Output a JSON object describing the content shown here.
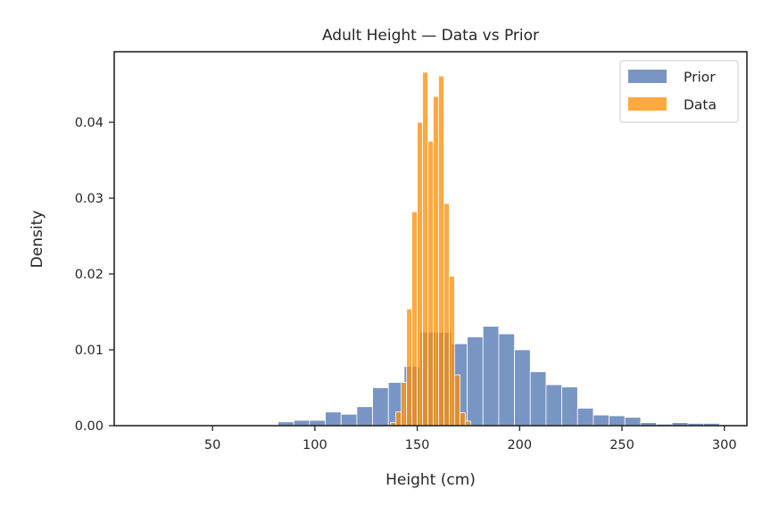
{
  "chart_data": {
    "type": "histogram",
    "title": "Adult Height — Data vs Prior",
    "xlabel": "Height (cm)",
    "ylabel": "Density",
    "xlim": [
      2,
      311
    ],
    "ylim": [
      0,
      0.0493
    ],
    "x_ticks": [
      50,
      100,
      150,
      200,
      250,
      300
    ],
    "x_tick_labels": [
      "50",
      "100",
      "150",
      "200",
      "250",
      "300"
    ],
    "y_ticks": [
      0,
      0.01,
      0.02,
      0.03,
      0.04
    ],
    "y_tick_labels": [
      "0.00",
      "0.01",
      "0.02",
      "0.03",
      "0.04"
    ],
    "grid": false,
    "legend_position": "top-right",
    "series": [
      {
        "name": "Prior",
        "color": "#4c72b0",
        "opacity": 0.75,
        "bins": [
          [
            82.0,
            89.7,
            0.0005
          ],
          [
            89.7,
            97.4,
            0.0007
          ],
          [
            97.4,
            105.1,
            0.0007
          ],
          [
            105.1,
            112.8,
            0.0018
          ],
          [
            112.8,
            120.5,
            0.0015
          ],
          [
            120.5,
            128.2,
            0.0025
          ],
          [
            128.2,
            135.9,
            0.005
          ],
          [
            135.9,
            143.6,
            0.0057
          ],
          [
            143.6,
            151.3,
            0.0078
          ],
          [
            151.3,
            159.0,
            0.0123
          ],
          [
            159.0,
            166.7,
            0.0123
          ],
          [
            166.7,
            174.4,
            0.0108
          ],
          [
            174.4,
            182.1,
            0.0117
          ],
          [
            182.1,
            189.8,
            0.0131
          ],
          [
            189.8,
            197.5,
            0.0121
          ],
          [
            197.5,
            205.2,
            0.01
          ],
          [
            205.2,
            212.9,
            0.0071
          ],
          [
            212.9,
            220.6,
            0.0054
          ],
          [
            220.6,
            228.3,
            0.0051
          ],
          [
            228.3,
            236.0,
            0.0023
          ],
          [
            236.0,
            243.7,
            0.0014
          ],
          [
            243.7,
            251.4,
            0.0013
          ],
          [
            251.4,
            259.1,
            0.0011
          ],
          [
            259.1,
            266.8,
            0.0004
          ],
          [
            266.8,
            274.5,
            0.0002
          ],
          [
            274.5,
            282.2,
            0.0004
          ],
          [
            282.2,
            289.9,
            0.0003
          ],
          [
            289.9,
            297.6,
            0.0003
          ]
        ]
      },
      {
        "name": "Data",
        "color": "#ff8c00",
        "opacity": 0.75,
        "bins": [
          [
            137.0,
            139.6,
            0.0004
          ],
          [
            139.6,
            142.2,
            0.0018
          ],
          [
            142.2,
            144.8,
            0.0057
          ],
          [
            144.8,
            147.4,
            0.0154
          ],
          [
            147.4,
            150.0,
            0.0282
          ],
          [
            150.0,
            152.6,
            0.04
          ],
          [
            152.6,
            155.2,
            0.0466
          ],
          [
            155.2,
            157.8,
            0.0375
          ],
          [
            157.8,
            160.4,
            0.0434
          ],
          [
            160.4,
            163.0,
            0.0461
          ],
          [
            163.0,
            165.6,
            0.0293
          ],
          [
            165.6,
            168.2,
            0.0197
          ],
          [
            168.2,
            170.8,
            0.0067
          ],
          [
            170.8,
            173.4,
            0.0017
          ],
          [
            173.4,
            176.0,
            0.0006
          ]
        ]
      }
    ]
  }
}
